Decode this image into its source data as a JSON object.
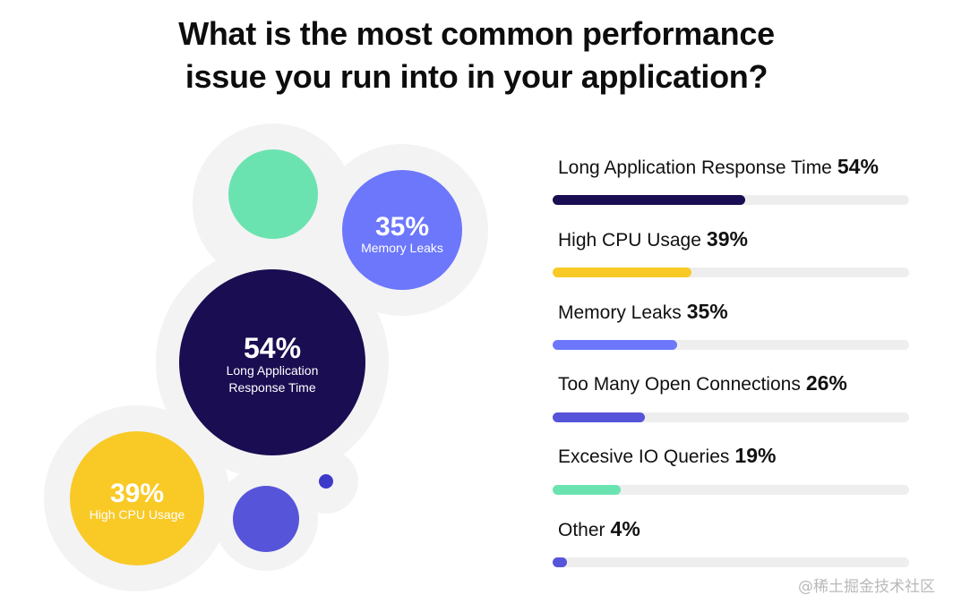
{
  "chart_data": {
    "type": "bar",
    "title": [
      "What is the most common performance",
      "issue you run into in your application?"
    ],
    "unit": "%",
    "xlim": [
      0,
      100
    ],
    "categories": [
      "Long Application Response Time",
      "High CPU Usage",
      "Memory Leaks",
      "Too Many Open Connections",
      "Excesive IO Queries",
      "Other"
    ],
    "values": [
      54,
      39,
      35,
      26,
      19,
      4
    ],
    "value_labels": [
      "54%",
      "39%",
      "35%",
      "26%",
      "19%",
      "4%"
    ],
    "colors": [
      "#1a0d52",
      "#f9c926",
      "#6c77fc",
      "#5654d9",
      "#6be3b0",
      "#5654d9"
    ],
    "bubbles": [
      {
        "value_label": "54%",
        "label_lines": [
          "Long Application",
          "Response Time"
        ],
        "color": "#1a0d52"
      },
      {
        "value_label": "35%",
        "label_lines": [
          "Memory Leaks"
        ],
        "color": "#6c77fc"
      },
      {
        "value_label": "39%",
        "label_lines": [
          "High CPU Usage"
        ],
        "color": "#f9c926"
      },
      {
        "value_label": "",
        "label_lines": [],
        "color": "#6be3b0"
      },
      {
        "value_label": "",
        "label_lines": [],
        "color": "#5654d9"
      },
      {
        "value_label": "",
        "label_lines": [],
        "color": "#3d3ac9"
      }
    ],
    "track_color": "#eeeeef",
    "halo_color": "#f3f3f4"
  },
  "watermark": "@稀土掘金技术社区"
}
